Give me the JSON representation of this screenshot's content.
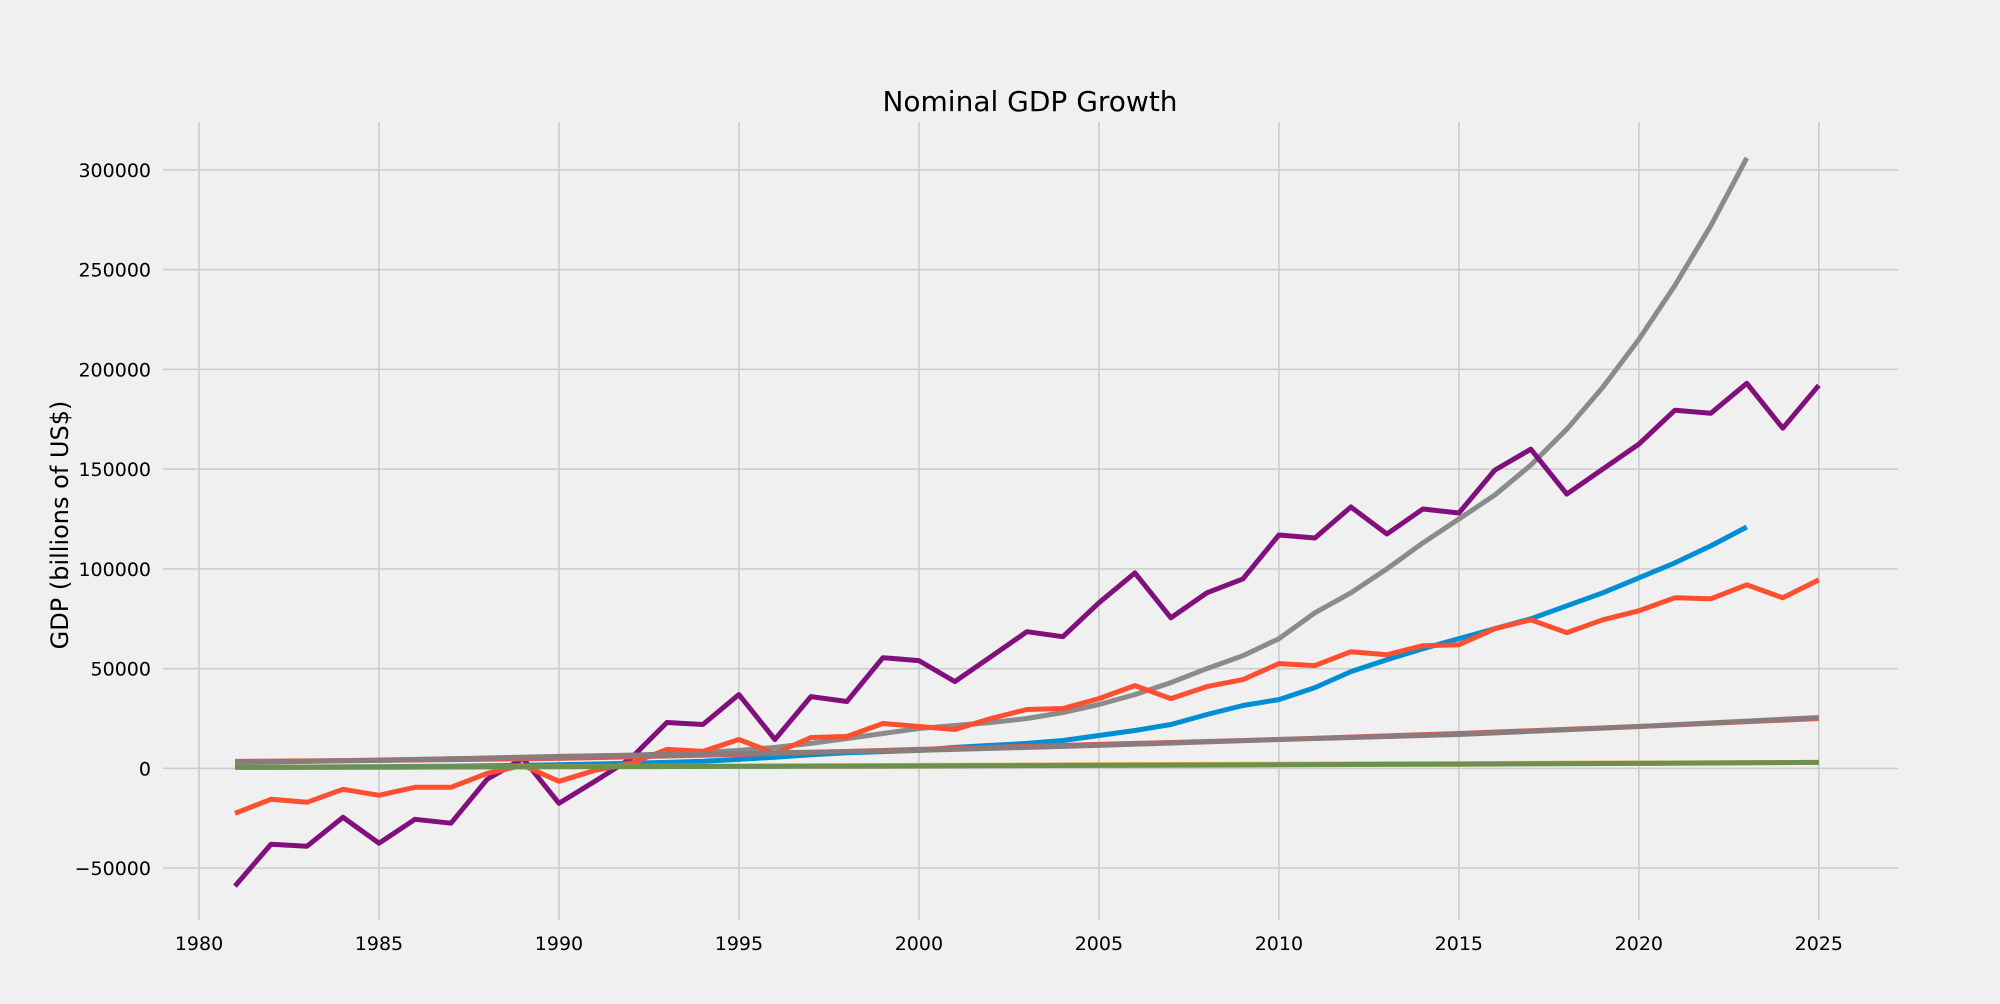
{
  "chart_data": {
    "type": "line",
    "title": "Nominal GDP Growth",
    "xlabel": "",
    "ylabel": "GDP (billions of US$)",
    "xlim": [
      1979,
      2027.2
    ],
    "ylim": [
      -76000,
      324000
    ],
    "xticks": [
      1980,
      1985,
      1990,
      1995,
      2000,
      2005,
      2010,
      2015,
      2020,
      2025
    ],
    "yticks": [
      -50000,
      0,
      50000,
      100000,
      150000,
      200000,
      250000,
      300000
    ],
    "ytick_labels": [
      "−50000",
      "0",
      "50000",
      "100000",
      "150000",
      "200000",
      "250000",
      "300000"
    ],
    "grid": true,
    "legend": "none",
    "series": [
      {
        "color": "#8b8b8b",
        "x": [
          1981,
          1982,
          1983,
          1984,
          1985,
          1986,
          1987,
          1988,
          1989,
          1990,
          1991,
          1992,
          1993,
          1994,
          1995,
          1996,
          1997,
          1998,
          1999,
          2000,
          2001,
          2002,
          2003,
          2004,
          2005,
          2006,
          2007,
          2008,
          2009,
          2010,
          2011,
          2012,
          2013,
          2014,
          2015,
          2016,
          2017,
          2018,
          2019,
          2020,
          2021,
          2022,
          2023
        ],
        "values": [
          3000,
          3300,
          3600,
          3900,
          4200,
          4500,
          4800,
          5100,
          5400,
          5800,
          6200,
          6600,
          7200,
          8000,
          9000,
          10500,
          12500,
          15000,
          17500,
          20000,
          21500,
          23000,
          25000,
          28000,
          32000,
          37000,
          43000,
          50000,
          56500,
          65000,
          78000,
          88000,
          100000,
          113000,
          125000,
          137000,
          152000,
          170000,
          191000,
          215000,
          242000,
          272000,
          306000
        ]
      },
      {
        "color": "#810f7c",
        "x": [
          1981,
          1982,
          1983,
          1984,
          1985,
          1986,
          1987,
          1988,
          1989,
          1990,
          1991,
          1992,
          1993,
          1994,
          1995,
          1996,
          1997,
          1998,
          1999,
          2000,
          2001,
          2002,
          2003,
          2004,
          2005,
          2006,
          2007,
          2008,
          2009,
          2010,
          2011,
          2012,
          2013,
          2014,
          2015,
          2016,
          2017,
          2018,
          2019,
          2020,
          2021,
          2022,
          2023,
          2024,
          2025
        ],
        "values": [
          -59000,
          -38000,
          -39000,
          -24500,
          -37500,
          -25500,
          -27500,
          -5500,
          5000,
          -17500,
          -6500,
          5000,
          23000,
          22000,
          37000,
          14500,
          36000,
          33500,
          55500,
          54000,
          43500,
          56000,
          68500,
          66000,
          83000,
          98000,
          75500,
          88000,
          95000,
          117000,
          115500,
          131000,
          117500,
          130000,
          128000,
          149500,
          160000,
          137500,
          150000,
          162500,
          179500,
          178000,
          193000,
          170500,
          192000
        ]
      },
      {
        "color": "#008fd5",
        "x": [
          1981,
          1982,
          1983,
          1984,
          1985,
          1986,
          1987,
          1988,
          1989,
          1990,
          1991,
          1992,
          1993,
          1994,
          1995,
          1996,
          1997,
          1998,
          1999,
          2000,
          2001,
          2002,
          2003,
          2004,
          2005,
          2006,
          2007,
          2008,
          2009,
          2010,
          2011,
          2012,
          2013,
          2014,
          2015,
          2016,
          2017,
          2018,
          2019,
          2020,
          2021,
          2022,
          2023
        ],
        "values": [
          500,
          600,
          700,
          800,
          900,
          1000,
          1100,
          1300,
          1500,
          1800,
          2200,
          2600,
          3000,
          3600,
          4500,
          5600,
          6800,
          7800,
          8400,
          9000,
          10500,
          11500,
          12500,
          14000,
          16500,
          19000,
          22000,
          27000,
          31500,
          34500,
          40500,
          48500,
          54500,
          60000,
          65000,
          70000,
          75000,
          81500,
          88000,
          95500,
          103000,
          111500,
          121000
        ]
      },
      {
        "color": "#fc4f30",
        "x": [
          1981,
          1982,
          1983,
          1984,
          1985,
          1986,
          1987,
          1988,
          1989,
          1990,
          1991,
          1992,
          1993,
          1994,
          1995,
          1996,
          1997,
          1998,
          1999,
          2000,
          2001,
          2002,
          2003,
          2004,
          2005,
          2006,
          2007,
          2008,
          2009,
          2010,
          2011,
          2012,
          2013,
          2014,
          2015,
          2016,
          2017,
          2018,
          2019,
          2020,
          2021,
          2022,
          2023,
          2024,
          2025
        ],
        "values": [
          -22500,
          -15500,
          -17000,
          -10500,
          -13500,
          -9500,
          -9500,
          -2500,
          1500,
          -6500,
          -1000,
          2500,
          9500,
          8500,
          14500,
          7500,
          15500,
          16000,
          22500,
          21000,
          19500,
          25000,
          29500,
          30000,
          35000,
          41500,
          35000,
          41000,
          44500,
          52500,
          51500,
          58500,
          57000,
          61500,
          62000,
          70000,
          74500,
          68000,
          74500,
          79000,
          85500,
          85000,
          92000,
          85500,
          94500
        ]
      },
      {
        "color": "#e5ae38",
        "x": [
          1981,
          1985,
          1990,
          1995,
          2000,
          2005,
          2010,
          2015,
          2020,
          2025
        ],
        "values": [
          500,
          700,
          900,
          1200,
          1500,
          1800,
          2100,
          2400,
          2700,
          3000
        ]
      },
      {
        "color": "#6d904f",
        "x": [
          1981,
          1985,
          1990,
          1995,
          2000,
          2005,
          2010,
          2015,
          2020,
          2025
        ],
        "values": [
          500,
          600,
          800,
          1000,
          1200,
          1500,
          1800,
          2100,
          2500,
          3000
        ]
      },
      {
        "color": "#d95a58",
        "x": [
          1981,
          1985,
          1990,
          1995,
          2000,
          2005,
          2010,
          2015,
          2020,
          2025
        ],
        "values": [
          3500,
          4000,
          5000,
          7000,
          9500,
          12000,
          14500,
          17500,
          21000,
          25000
        ]
      },
      {
        "color": "#8b7b7b",
        "x": [
          1981,
          1985,
          1990,
          1995,
          2000,
          2005,
          2010,
          2015,
          2020,
          2025
        ],
        "values": [
          3000,
          4000,
          6000,
          7500,
          9000,
          11500,
          14500,
          17000,
          21000,
          25500
        ]
      }
    ]
  }
}
